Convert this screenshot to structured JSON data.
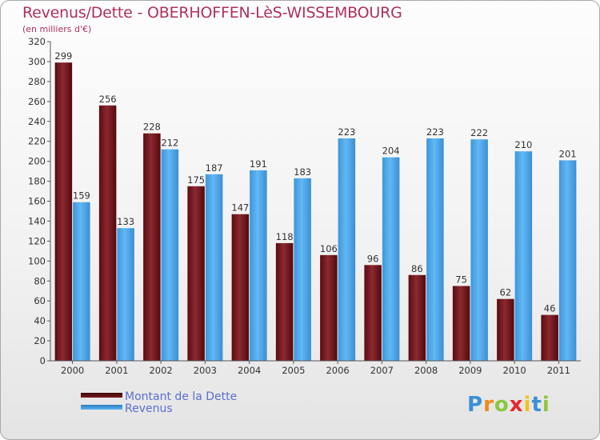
{
  "colors": {
    "title": "#b0305a",
    "dette": "#7a1a1e",
    "revenus": "#4aa3e6",
    "legend_text": "#5a6fd0",
    "axis_text": "#333333"
  },
  "chart_data": {
    "type": "bar",
    "title": "Revenus/Dette - OBERHOFFEN-LèS-WISSEMBOURG",
    "subtitle": "(en milliers d'€)",
    "xlabel": "",
    "ylabel": "",
    "ylim": [
      0,
      320
    ],
    "ytick_step": 20,
    "grid": false,
    "legend_position": "bottom-left",
    "categories": [
      "2000",
      "2001",
      "2002",
      "2003",
      "2004",
      "2005",
      "2006",
      "2007",
      "2008",
      "2009",
      "2010",
      "2011"
    ],
    "series": [
      {
        "name": "Montant de la Dette",
        "color": "#7a1a1e",
        "values": [
          299,
          256,
          228,
          175,
          147,
          118,
          106,
          96,
          86,
          75,
          62,
          46
        ]
      },
      {
        "name": "Revenus",
        "color": "#4aa3e6",
        "values": [
          159,
          133,
          212,
          187,
          191,
          183,
          223,
          204,
          223,
          222,
          210,
          201
        ]
      }
    ]
  },
  "logo": {
    "letters": [
      "P",
      "r",
      "o",
      "x",
      "i",
      "t",
      "i"
    ],
    "letter_colors": [
      "#3a8fd9",
      "#f08a1c",
      "#8cc63f",
      "#e8282b",
      "#f3c21b",
      "#3a8fd9",
      "#8cc63f"
    ]
  }
}
